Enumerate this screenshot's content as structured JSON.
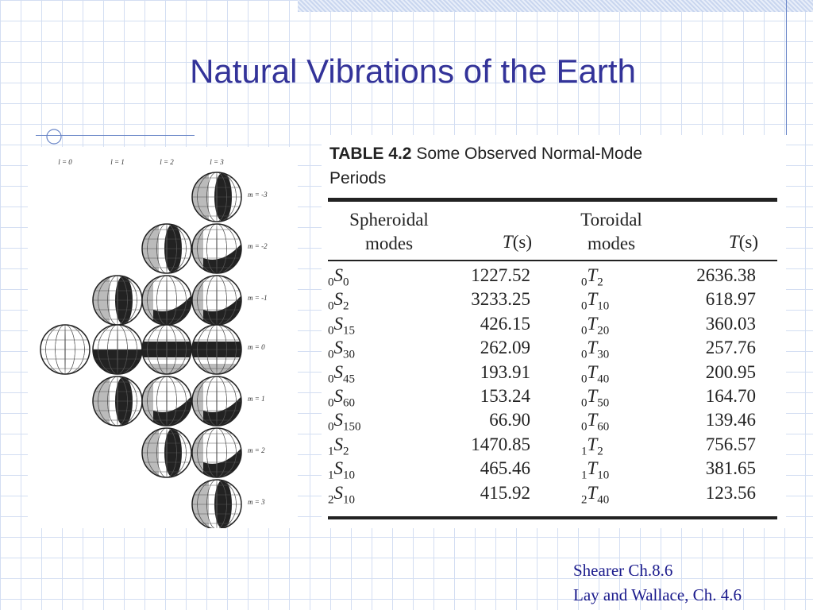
{
  "title": "Natural Vibrations of the Earth",
  "figure": {
    "l_labels": [
      "l = 0",
      "l = 1",
      "l = 2",
      "l = 3"
    ],
    "m_labels": [
      "m = -3",
      "m = -2",
      "m = -1",
      "m = 0",
      "m = 1",
      "m = 2",
      "m = 3"
    ]
  },
  "table": {
    "label": "TABLE 4.2",
    "caption_line1": "Some Observed Normal-Mode",
    "caption_line2": "Periods",
    "headers": [
      {
        "line1": "Spheroidal",
        "line2": "modes"
      },
      {
        "symbol": "T",
        "unit": "(s)"
      },
      {
        "line1": "Toroidal",
        "line2": "modes"
      },
      {
        "symbol": "T",
        "unit": "(s)"
      }
    ],
    "rows": [
      [
        {
          "n": "0",
          "letter": "S",
          "l": "0"
        },
        "1227.52",
        {
          "n": "0",
          "letter": "T",
          "l": "2"
        },
        "2636.38"
      ],
      [
        {
          "n": "0",
          "letter": "S",
          "l": "2"
        },
        "3233.25",
        {
          "n": "0",
          "letter": "T",
          "l": "10"
        },
        "618.97"
      ],
      [
        {
          "n": "0",
          "letter": "S",
          "l": "15"
        },
        "426.15",
        {
          "n": "0",
          "letter": "T",
          "l": "20"
        },
        "360.03"
      ],
      [
        {
          "n": "0",
          "letter": "S",
          "l": "30"
        },
        "262.09",
        {
          "n": "0",
          "letter": "T",
          "l": "30"
        },
        "257.76"
      ],
      [
        {
          "n": "0",
          "letter": "S",
          "l": "45"
        },
        "193.91",
        {
          "n": "0",
          "letter": "T",
          "l": "40"
        },
        "200.95"
      ],
      [
        {
          "n": "0",
          "letter": "S",
          "l": "60"
        },
        "153.24",
        {
          "n": "0",
          "letter": "T",
          "l": "50"
        },
        "164.70"
      ],
      [
        {
          "n": "0",
          "letter": "S",
          "l": "150"
        },
        "66.90",
        {
          "n": "0",
          "letter": "T",
          "l": "60"
        },
        "139.46"
      ],
      [
        {
          "n": "1",
          "letter": "S",
          "l": "2"
        },
        "1470.85",
        {
          "n": "1",
          "letter": "T",
          "l": "2"
        },
        "756.57"
      ],
      [
        {
          "n": "1",
          "letter": "S",
          "l": "10"
        },
        "465.46",
        {
          "n": "1",
          "letter": "T",
          "l": "10"
        },
        "381.65"
      ],
      [
        {
          "n": "2",
          "letter": "S",
          "l": "10"
        },
        "415.92",
        {
          "n": "2",
          "letter": "T",
          "l": "40"
        },
        "123.56"
      ]
    ]
  },
  "citations": [
    "Shearer Ch.8.6",
    "Lay and Wallace, Ch. 4.6"
  ]
}
